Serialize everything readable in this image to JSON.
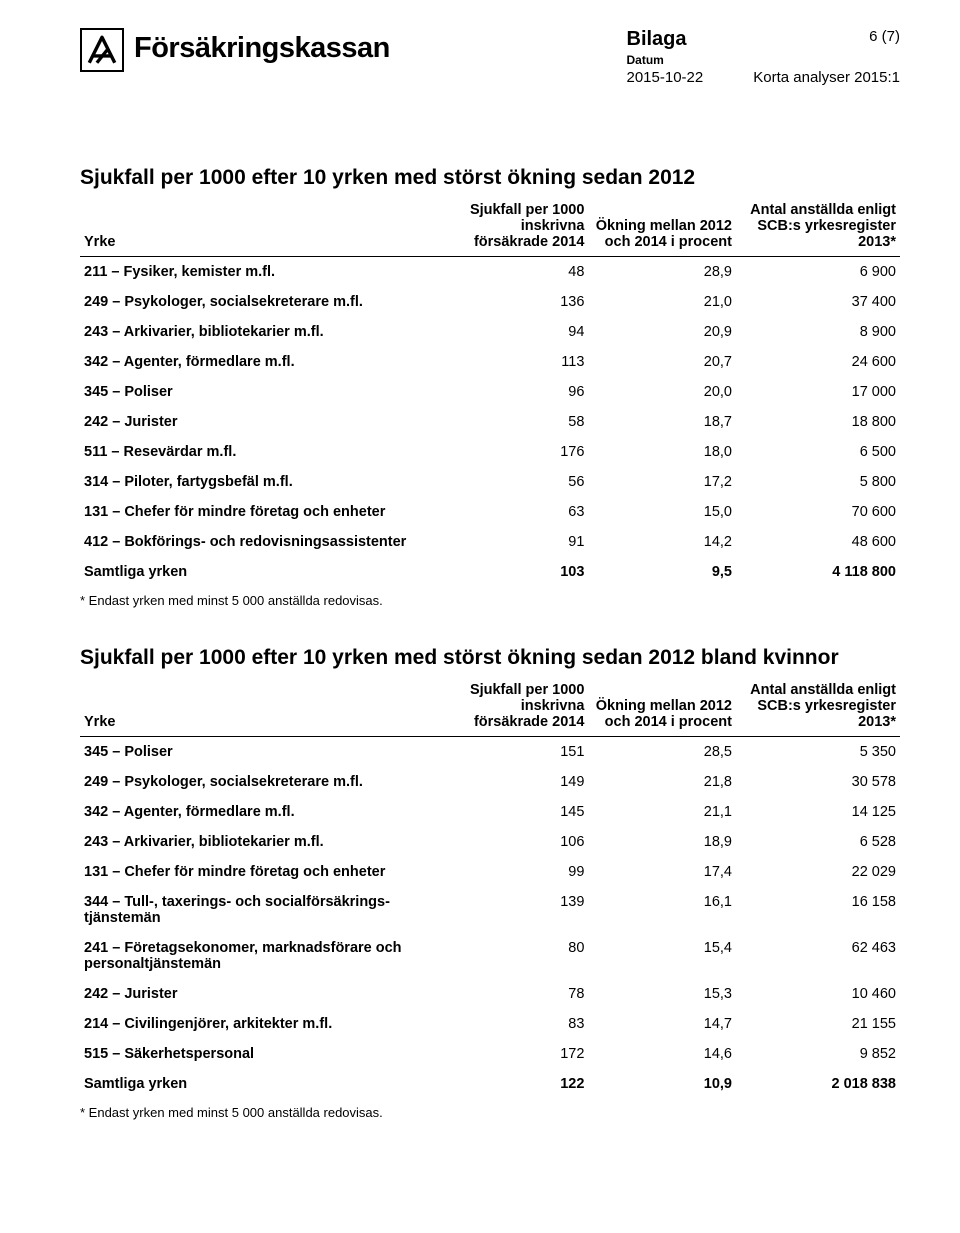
{
  "header": {
    "org_name": "Försäkringskassan",
    "doc_type": "Bilaga",
    "datum_label": "Datum",
    "doc_date": "2015-10-22",
    "page_num": "6 (7)",
    "report": "Korta analyser 2015:1"
  },
  "t1": {
    "title": "Sjukfall per 1000 efter 10 yrken med störst ökning sedan 2012",
    "head": {
      "yrke": "Yrke",
      "a": "Sjukfall per 1000 inskrivna försäkrade 2014",
      "b": "Ökning mellan 2012 och 2014 i procent",
      "c": "Antal anställda enligt SCB:s yrkes­register 2013*"
    },
    "rows": [
      {
        "yrke": "211 – Fysiker, kemister m.fl.",
        "a": "48",
        "b": "28,9",
        "c": "6 900"
      },
      {
        "yrke": "249 – Psykologer, socialsekreterare m.fl.",
        "a": "136",
        "b": "21,0",
        "c": "37 400"
      },
      {
        "yrke": "243 – Arkivarier, bibliotekarier m.fl.",
        "a": "94",
        "b": "20,9",
        "c": "8 900"
      },
      {
        "yrke": "342 – Agenter, förmedlare m.fl.",
        "a": "113",
        "b": "20,7",
        "c": "24 600"
      },
      {
        "yrke": "345 – Poliser",
        "a": "96",
        "b": "20,0",
        "c": "17 000"
      },
      {
        "yrke": "242 – Jurister",
        "a": "58",
        "b": "18,7",
        "c": "18 800"
      },
      {
        "yrke": "511 – Resevärdar m.fl.",
        "a": "176",
        "b": "18,0",
        "c": "6 500"
      },
      {
        "yrke": "314 – Piloter, fartygsbefäl m.fl.",
        "a": "56",
        "b": "17,2",
        "c": "5 800"
      },
      {
        "yrke": "131 – Chefer för mindre företag och enheter",
        "a": "63",
        "b": "15,0",
        "c": "70 600"
      },
      {
        "yrke": "412 – Bokförings- och redovisningsassistenter",
        "a": "91",
        "b": "14,2",
        "c": "48 600"
      }
    ],
    "total": {
      "yrke": "Samtliga yrken",
      "a": "103",
      "b": "9,5",
      "c": "4 118 800"
    },
    "footnote": "* Endast yrken med minst 5 000 anställda redovisas."
  },
  "t2": {
    "title": "Sjukfall per 1000 efter 10 yrken med störst ökning sedan 2012 bland kvinnor",
    "head": {
      "yrke": "Yrke",
      "a": "Sjukfall per 1000 inskrivna försäkrade 2014",
      "b": "Ökning mellan 2012 och 2014 i procent",
      "c": "Antal anställda enligt SCB:s yrkes­register 2013*"
    },
    "rows": [
      {
        "yrke": "345 – Poliser",
        "a": "151",
        "b": "28,5",
        "c": "5 350"
      },
      {
        "yrke": "249 – Psykologer, socialsekreterare m.fl.",
        "a": "149",
        "b": "21,8",
        "c": "30 578"
      },
      {
        "yrke": "342 – Agenter, förmedlare m.fl.",
        "a": "145",
        "b": "21,1",
        "c": "14 125"
      },
      {
        "yrke": "243 – Arkivarier, bibliotekarier m.fl.",
        "a": "106",
        "b": "18,9",
        "c": "6 528"
      },
      {
        "yrke": "131 – Chefer för mindre företag och enheter",
        "a": "99",
        "b": "17,4",
        "c": "22 029"
      },
      {
        "yrke": "344 – Tull-, taxerings- och socialförsäkrings­tjänstemän",
        "a": "139",
        "b": "16,1",
        "c": "16 158"
      },
      {
        "yrke": "241 – Företagsekonomer, marknadsförare och personaltjänstemän",
        "a": "80",
        "b": "15,4",
        "c": "62 463"
      },
      {
        "yrke": "242 – Jurister",
        "a": "78",
        "b": "15,3",
        "c": "10 460"
      },
      {
        "yrke": "214 – Civilingenjörer, arkitekter m.fl.",
        "a": "83",
        "b": "14,7",
        "c": "21 155"
      },
      {
        "yrke": "515 – Säkerhetspersonal",
        "a": "172",
        "b": "14,6",
        "c": "9 852"
      }
    ],
    "total": {
      "yrke": "Samtliga yrken",
      "a": "122",
      "b": "10,9",
      "c": "2 018 838"
    },
    "footnote": "* Endast yrken med minst 5 000 anställda redovisas."
  }
}
